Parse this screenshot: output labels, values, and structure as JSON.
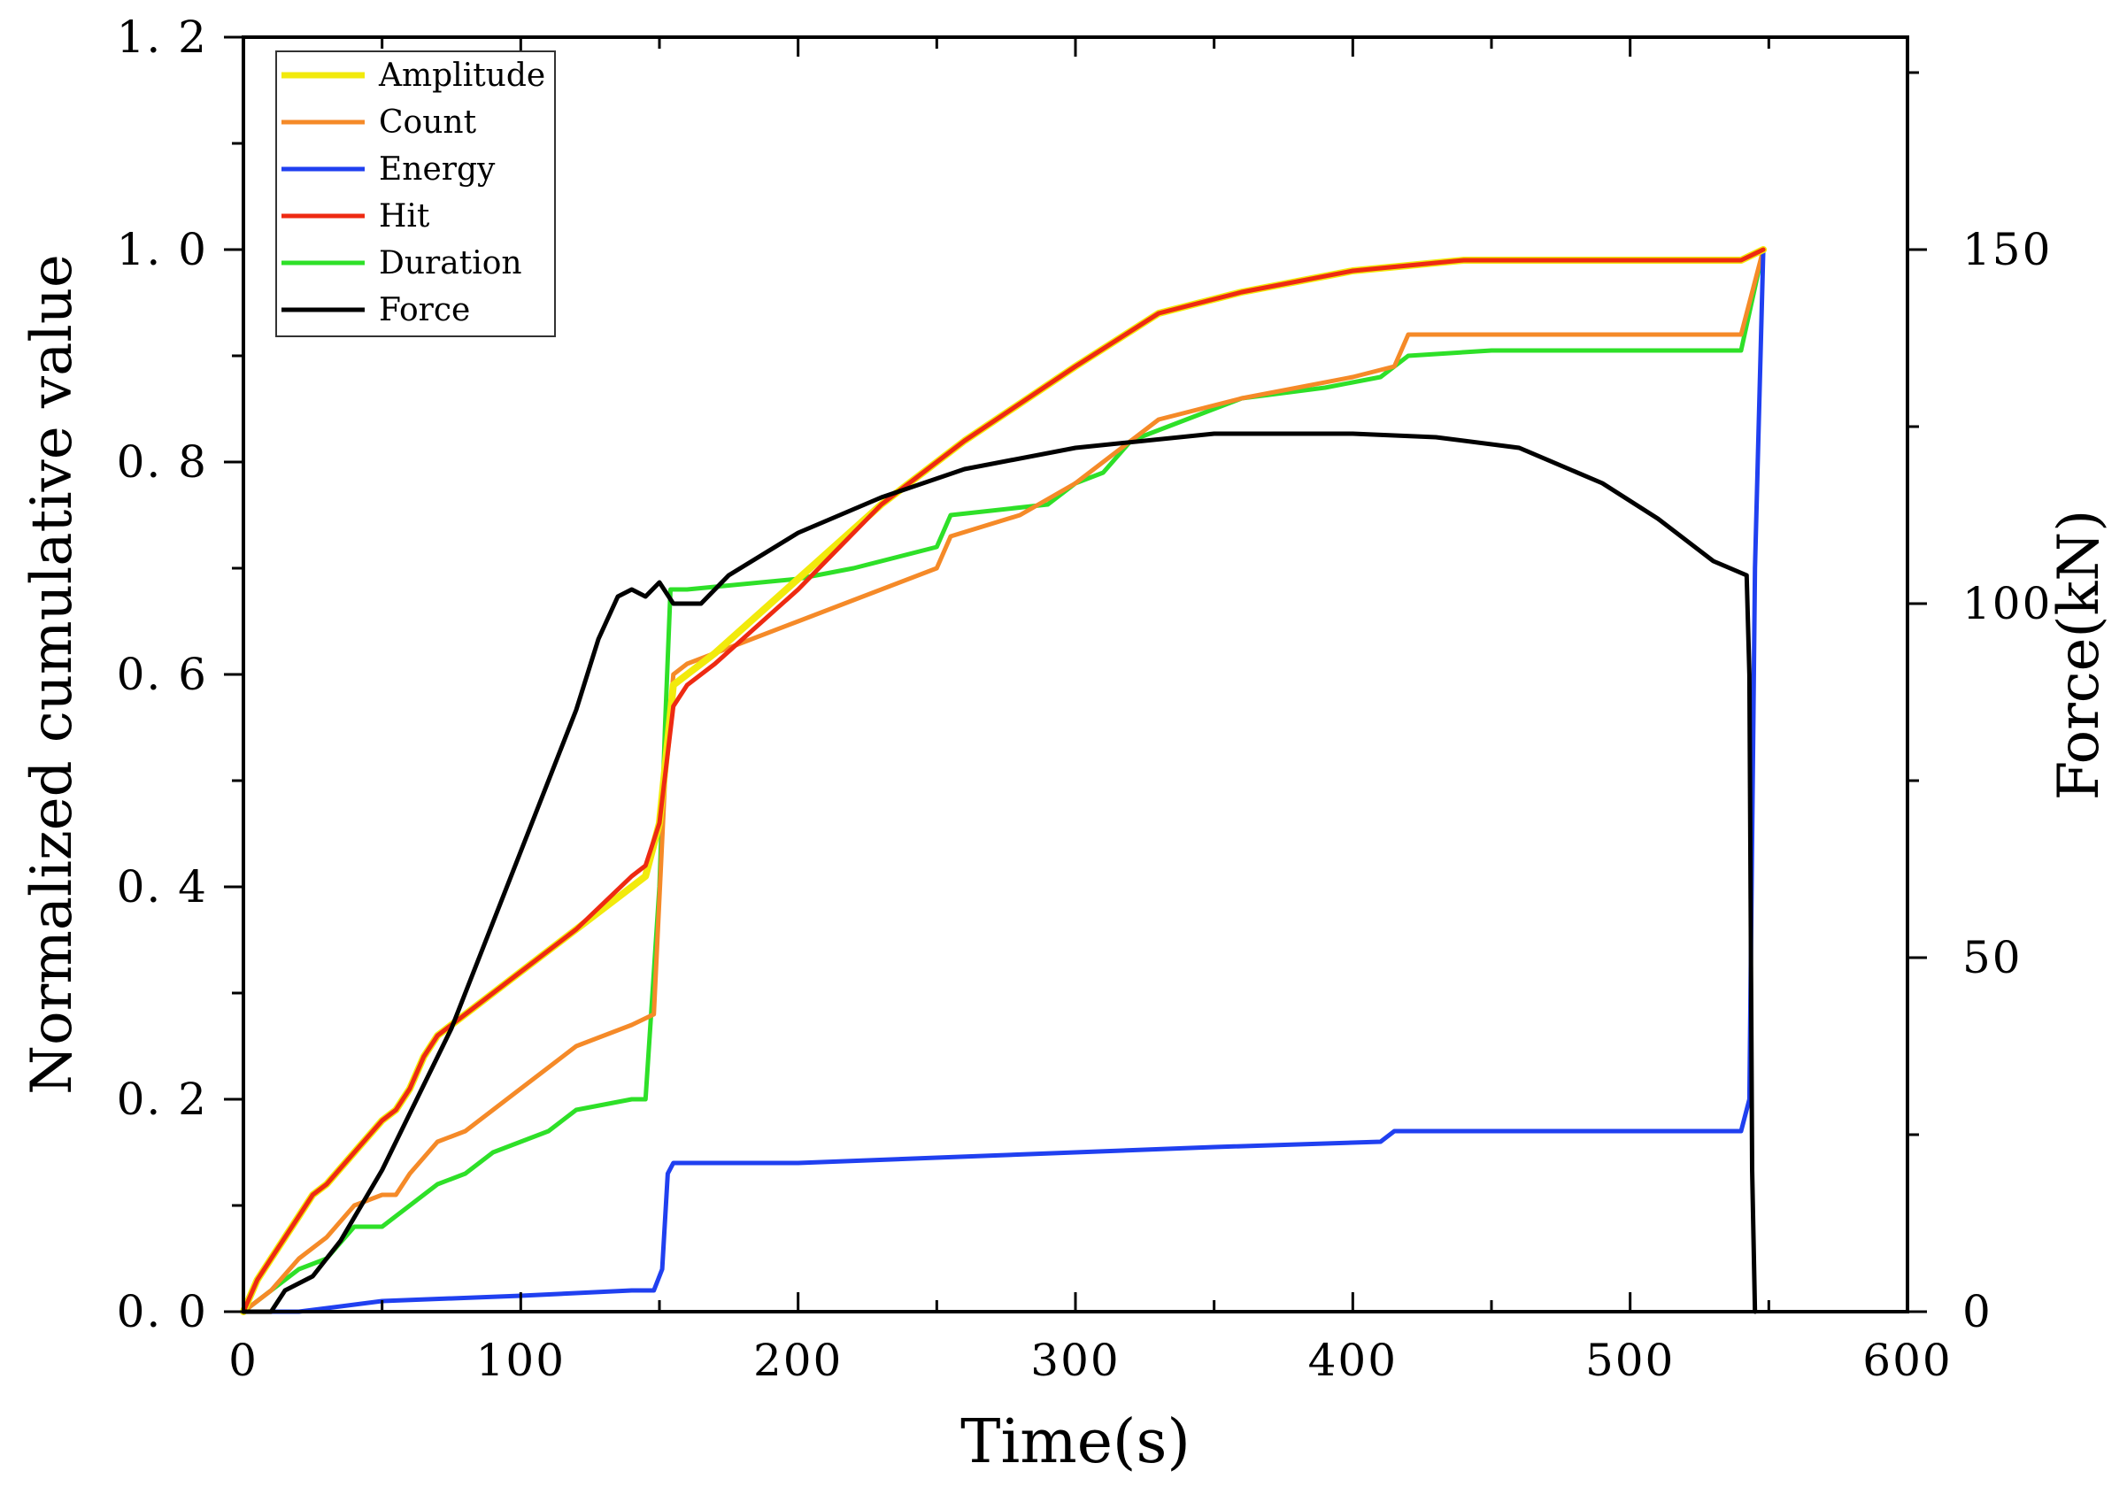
{
  "chart_data": {
    "type": "line",
    "title": "",
    "xlabel": "Time(s)",
    "ylabel": "Normalized cumulative value",
    "y2label": "Force(kN)",
    "xlim": [
      0,
      600
    ],
    "ylim": [
      0,
      1.2
    ],
    "y2lim": [
      0,
      180
    ],
    "grid": false,
    "legend_position": "top-left",
    "x_tick_labels": [
      "0",
      "100",
      "200",
      "300",
      "400",
      "500",
      "600"
    ],
    "x_tick_values": [
      0,
      100,
      200,
      300,
      400,
      500,
      600
    ],
    "y_tick_labels": [
      "0. 0",
      "0. 2",
      "0. 4",
      "0. 6",
      "0. 8",
      "1. 0",
      "1. 2"
    ],
    "y_tick_values": [
      0,
      0.2,
      0.4,
      0.6,
      0.8,
      1.0,
      1.2
    ],
    "y2_tick_labels": [
      "0",
      "50",
      "100",
      "150"
    ],
    "y2_tick_values": [
      0,
      50,
      100,
      150
    ],
    "series": [
      {
        "name": "Amplitude",
        "color": "#f2ea0c",
        "axis": "left",
        "width": 8,
        "points": [
          [
            0,
            0
          ],
          [
            5,
            0.03
          ],
          [
            10,
            0.05
          ],
          [
            15,
            0.07
          ],
          [
            20,
            0.09
          ],
          [
            25,
            0.11
          ],
          [
            30,
            0.12
          ],
          [
            40,
            0.15
          ],
          [
            50,
            0.18
          ],
          [
            55,
            0.19
          ],
          [
            60,
            0.21
          ],
          [
            65,
            0.24
          ],
          [
            70,
            0.26
          ],
          [
            80,
            0.28
          ],
          [
            100,
            0.32
          ],
          [
            120,
            0.36
          ],
          [
            140,
            0.4
          ],
          [
            145,
            0.41
          ],
          [
            150,
            0.46
          ],
          [
            155,
            0.59
          ],
          [
            160,
            0.6
          ],
          [
            170,
            0.62
          ],
          [
            200,
            0.69
          ],
          [
            230,
            0.76
          ],
          [
            260,
            0.82
          ],
          [
            300,
            0.89
          ],
          [
            330,
            0.94
          ],
          [
            360,
            0.96
          ],
          [
            400,
            0.98
          ],
          [
            440,
            0.99
          ],
          [
            480,
            0.99
          ],
          [
            540,
            0.99
          ],
          [
            548,
            1.0
          ]
        ]
      },
      {
        "name": "Count",
        "color": "#f58a28",
        "axis": "left",
        "width": 5,
        "points": [
          [
            0,
            0
          ],
          [
            10,
            0.02
          ],
          [
            20,
            0.05
          ],
          [
            30,
            0.07
          ],
          [
            40,
            0.1
          ],
          [
            50,
            0.11
          ],
          [
            55,
            0.11
          ],
          [
            60,
            0.13
          ],
          [
            70,
            0.16
          ],
          [
            80,
            0.17
          ],
          [
            90,
            0.19
          ],
          [
            100,
            0.21
          ],
          [
            110,
            0.23
          ],
          [
            120,
            0.25
          ],
          [
            140,
            0.27
          ],
          [
            148,
            0.28
          ],
          [
            152,
            0.5
          ],
          [
            155,
            0.6
          ],
          [
            160,
            0.61
          ],
          [
            180,
            0.63
          ],
          [
            200,
            0.65
          ],
          [
            220,
            0.67
          ],
          [
            250,
            0.7
          ],
          [
            255,
            0.73
          ],
          [
            280,
            0.75
          ],
          [
            300,
            0.78
          ],
          [
            310,
            0.8
          ],
          [
            330,
            0.84
          ],
          [
            360,
            0.86
          ],
          [
            400,
            0.88
          ],
          [
            415,
            0.89
          ],
          [
            420,
            0.92
          ],
          [
            500,
            0.92
          ],
          [
            540,
            0.92
          ],
          [
            548,
            1.0
          ]
        ]
      },
      {
        "name": "Energy",
        "color": "#2040f0",
        "axis": "left",
        "width": 5,
        "points": [
          [
            0,
            0
          ],
          [
            20,
            0
          ],
          [
            50,
            0.01
          ],
          [
            100,
            0.015
          ],
          [
            140,
            0.02
          ],
          [
            148,
            0.02
          ],
          [
            151,
            0.04
          ],
          [
            153,
            0.13
          ],
          [
            155,
            0.14
          ],
          [
            200,
            0.14
          ],
          [
            250,
            0.145
          ],
          [
            300,
            0.15
          ],
          [
            350,
            0.155
          ],
          [
            410,
            0.16
          ],
          [
            415,
            0.17
          ],
          [
            500,
            0.17
          ],
          [
            540,
            0.17
          ],
          [
            543,
            0.2
          ],
          [
            545,
            0.7
          ],
          [
            548,
            1.0
          ]
        ]
      },
      {
        "name": "Hit",
        "color": "#ee2a12",
        "axis": "left",
        "width": 5,
        "points": [
          [
            0,
            0
          ],
          [
            5,
            0.03
          ],
          [
            10,
            0.05
          ],
          [
            15,
            0.07
          ],
          [
            20,
            0.09
          ],
          [
            25,
            0.11
          ],
          [
            30,
            0.12
          ],
          [
            40,
            0.15
          ],
          [
            50,
            0.18
          ],
          [
            55,
            0.19
          ],
          [
            60,
            0.21
          ],
          [
            65,
            0.24
          ],
          [
            70,
            0.26
          ],
          [
            80,
            0.28
          ],
          [
            100,
            0.32
          ],
          [
            120,
            0.36
          ],
          [
            140,
            0.41
          ],
          [
            145,
            0.42
          ],
          [
            150,
            0.46
          ],
          [
            155,
            0.57
          ],
          [
            160,
            0.59
          ],
          [
            170,
            0.61
          ],
          [
            200,
            0.68
          ],
          [
            230,
            0.76
          ],
          [
            260,
            0.82
          ],
          [
            300,
            0.89
          ],
          [
            330,
            0.94
          ],
          [
            360,
            0.96
          ],
          [
            400,
            0.98
          ],
          [
            440,
            0.99
          ],
          [
            480,
            0.99
          ],
          [
            540,
            0.99
          ],
          [
            548,
            1.0
          ]
        ]
      },
      {
        "name": "Duration",
        "color": "#2ee028",
        "axis": "left",
        "width": 5,
        "points": [
          [
            0,
            0
          ],
          [
            10,
            0.02
          ],
          [
            20,
            0.04
          ],
          [
            30,
            0.05
          ],
          [
            40,
            0.08
          ],
          [
            50,
            0.08
          ],
          [
            55,
            0.09
          ],
          [
            60,
            0.1
          ],
          [
            70,
            0.12
          ],
          [
            80,
            0.13
          ],
          [
            90,
            0.15
          ],
          [
            100,
            0.16
          ],
          [
            110,
            0.17
          ],
          [
            120,
            0.19
          ],
          [
            140,
            0.2
          ],
          [
            145,
            0.2
          ],
          [
            150,
            0.4
          ],
          [
            152,
            0.55
          ],
          [
            154,
            0.68
          ],
          [
            160,
            0.68
          ],
          [
            200,
            0.69
          ],
          [
            220,
            0.7
          ],
          [
            250,
            0.72
          ],
          [
            255,
            0.75
          ],
          [
            290,
            0.76
          ],
          [
            300,
            0.78
          ],
          [
            310,
            0.79
          ],
          [
            320,
            0.82
          ],
          [
            340,
            0.84
          ],
          [
            360,
            0.86
          ],
          [
            390,
            0.87
          ],
          [
            410,
            0.88
          ],
          [
            415,
            0.89
          ],
          [
            420,
            0.9
          ],
          [
            450,
            0.905
          ],
          [
            540,
            0.905
          ],
          [
            548,
            1.0
          ]
        ]
      },
      {
        "name": "Force",
        "color": "#000000",
        "axis": "right",
        "width": 5,
        "points": [
          [
            0,
            0
          ],
          [
            10,
            0
          ],
          [
            15,
            3
          ],
          [
            25,
            5
          ],
          [
            35,
            10
          ],
          [
            50,
            20
          ],
          [
            60,
            28
          ],
          [
            75,
            40
          ],
          [
            90,
            55
          ],
          [
            105,
            70
          ],
          [
            120,
            85
          ],
          [
            128,
            95
          ],
          [
            135,
            101
          ],
          [
            140,
            102
          ],
          [
            145,
            101
          ],
          [
            150,
            103
          ],
          [
            155,
            100
          ],
          [
            165,
            100
          ],
          [
            175,
            104
          ],
          [
            200,
            110
          ],
          [
            230,
            115
          ],
          [
            260,
            119
          ],
          [
            300,
            122
          ],
          [
            350,
            124
          ],
          [
            400,
            124
          ],
          [
            430,
            123.5
          ],
          [
            460,
            122
          ],
          [
            490,
            117
          ],
          [
            510,
            112
          ],
          [
            530,
            106
          ],
          [
            542,
            104
          ],
          [
            543,
            90
          ],
          [
            544,
            20
          ],
          [
            545,
            0
          ]
        ]
      }
    ]
  }
}
